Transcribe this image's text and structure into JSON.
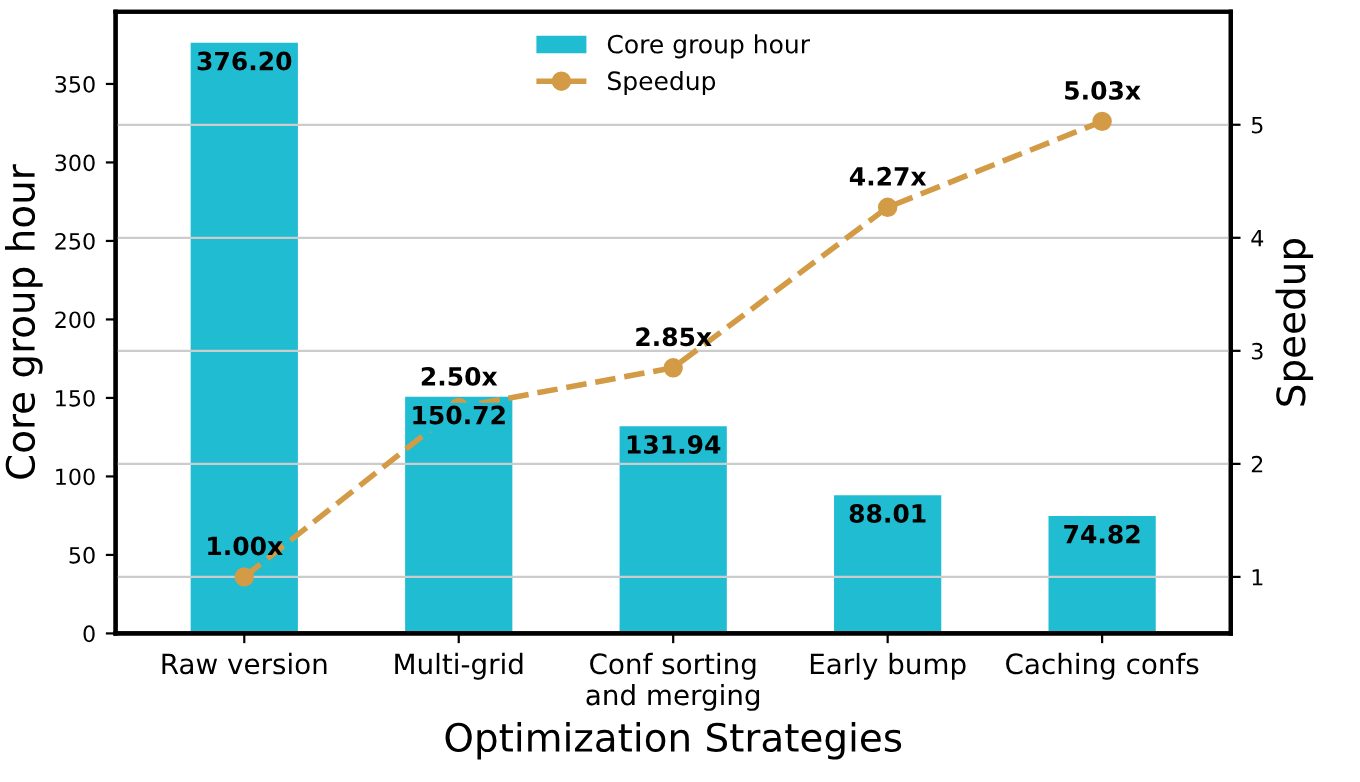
{
  "chart_data": {
    "type": "bar",
    "xlabel": "Optimization Strategies",
    "ylabel": "Core group hour",
    "y2label": "Speedup",
    "categories": [
      "Raw version",
      "Multi-grid",
      "Conf sorting\nand merging",
      "Early bump",
      "Caching confs"
    ],
    "series": [
      {
        "name": "Core group hour",
        "color": "#1fbcd2",
        "values": [
          376.2,
          150.72,
          131.94,
          88.01,
          74.82
        ],
        "value_labels": [
          "376.20",
          "150.72",
          "131.94",
          "88.01",
          "74.82"
        ]
      },
      {
        "name": "Speedup",
        "type": "line",
        "axis": "y2",
        "color": "#d39b45",
        "marker": "circle",
        "line_style": "dashed",
        "values": [
          1.0,
          2.5,
          2.85,
          4.27,
          5.03
        ],
        "value_labels": [
          "1.00x",
          "2.50x",
          "2.85x",
          "4.27x",
          "5.03x"
        ]
      }
    ],
    "ylim": [
      0,
      396
    ],
    "yticks": [
      0,
      50,
      100,
      150,
      200,
      250,
      300,
      350
    ],
    "y2lim": [
      0.5,
      6.0
    ],
    "y2ticks": [
      1,
      2,
      3,
      4,
      5
    ],
    "grid": "y",
    "legend": "top"
  }
}
